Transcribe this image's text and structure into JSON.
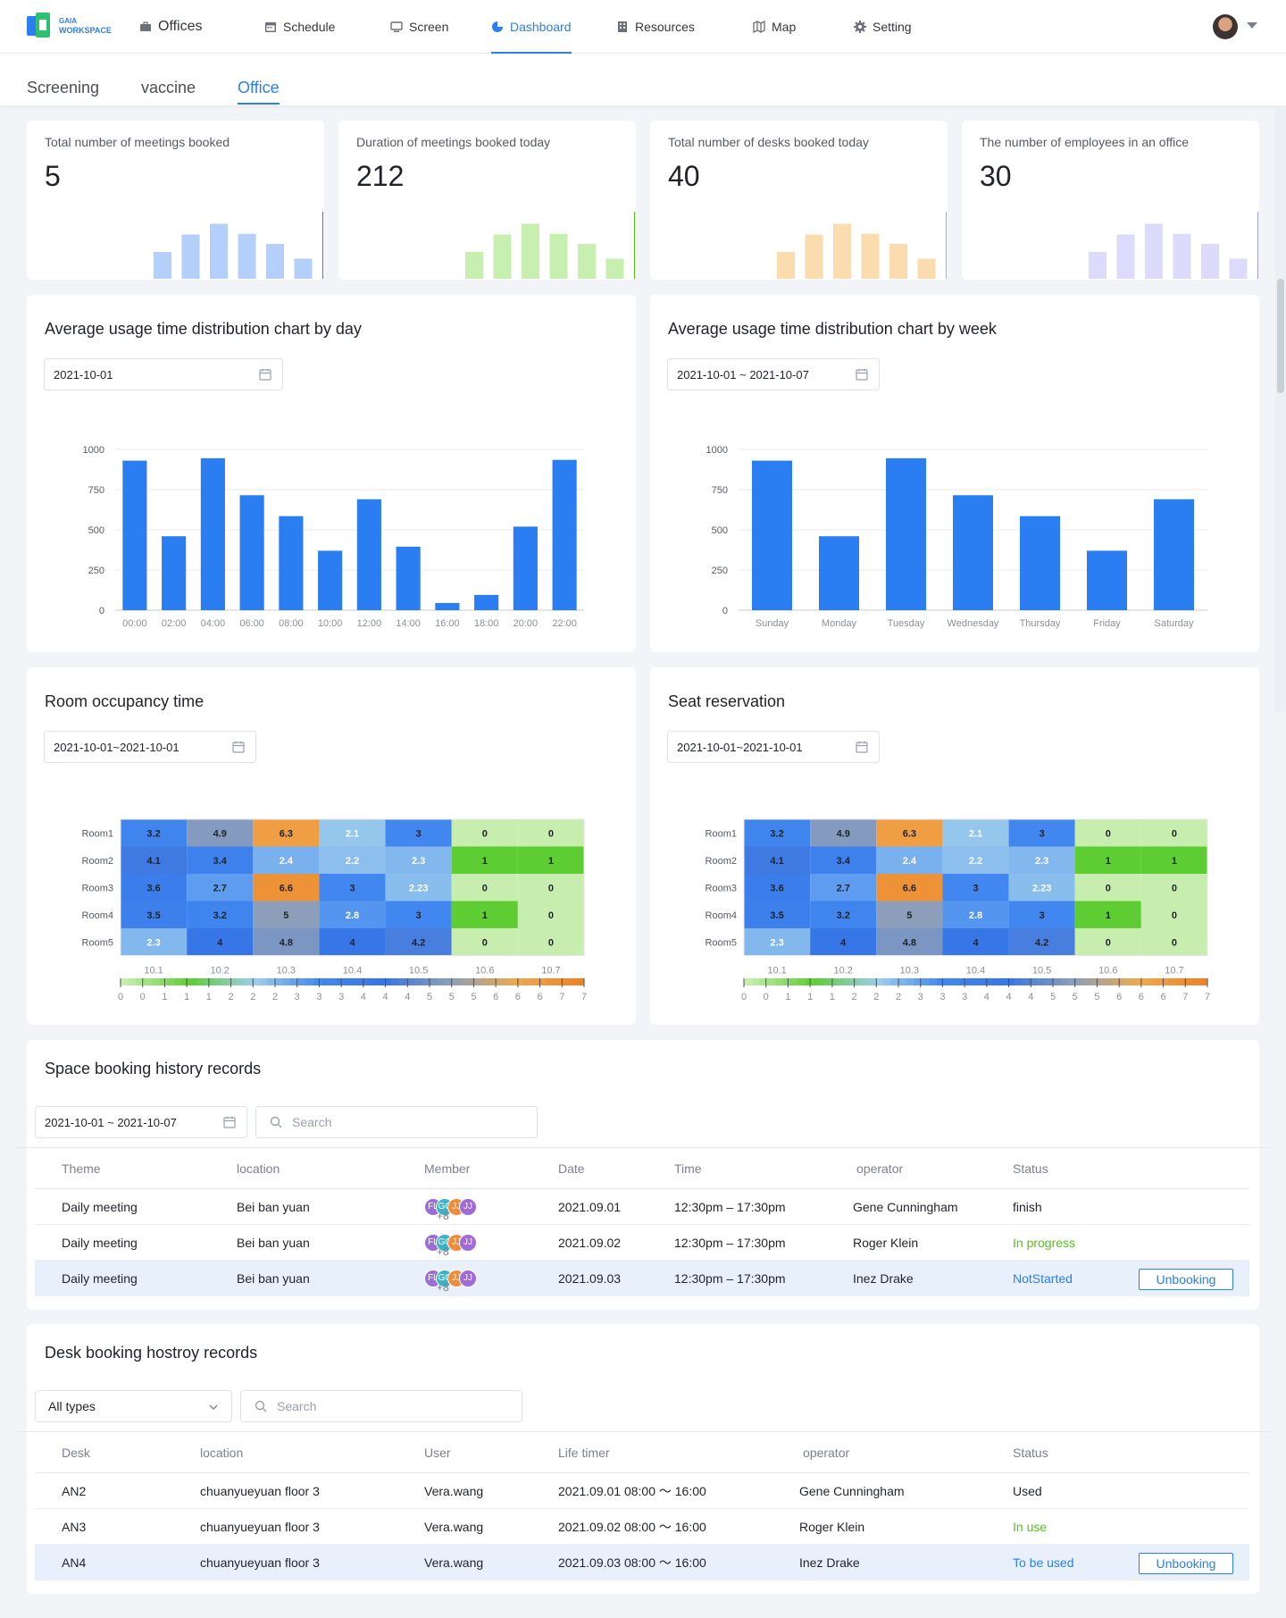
{
  "brand": {
    "line1": "GAIA",
    "line2": "WORKSPACE"
  },
  "nav": [
    {
      "label": "Offices",
      "icon": "briefcase-icon"
    },
    {
      "label": "Schedule",
      "icon": "calendar-icon"
    },
    {
      "label": "Screen",
      "icon": "monitor-icon"
    },
    {
      "label": "Dashboard",
      "icon": "pie-chart-icon"
    },
    {
      "label": "Resources",
      "icon": "building-icon"
    },
    {
      "label": "Map",
      "icon": "map-icon"
    },
    {
      "label": "Setting",
      "icon": "gear-icon"
    }
  ],
  "subtabs": [
    "Screening",
    "vaccine",
    "Office"
  ],
  "stats": [
    {
      "title": "Total number of meetings booked",
      "value": "5",
      "color": "#2b7ef2",
      "light": "#b3cffa"
    },
    {
      "title": "Duration of meetings booked today",
      "value": "212",
      "color": "#52c41a",
      "light": "#c6efb0"
    },
    {
      "title": "Total number of desks booked today",
      "value": "40",
      "color": "#f5a623",
      "light": "#fbdcae"
    },
    {
      "title": "The number of employees in an office",
      "value": "30",
      "color": "#9b98f5",
      "light": "#dcdbfc"
    }
  ],
  "day_chart": {
    "title": "Average usage time distribution chart by day",
    "date": "2021-10-01"
  },
  "week_chart": {
    "title": "Average usage time distribution chart by week",
    "date": "2021-10-01 ~ 2021-10-07"
  },
  "room_heat": {
    "title": "Room occupancy time",
    "date": "2021-10-01~2021-10-01"
  },
  "seat_heat": {
    "title": "Seat reservation",
    "date": "2021-10-01~2021-10-01"
  },
  "chart_data": [
    {
      "type": "bar",
      "categories": [
        "00:00",
        "02:00",
        "04:00",
        "06:00",
        "08:00",
        "10:00",
        "12:00",
        "14:00",
        "16:00",
        "18:00",
        "20:00",
        "22:00"
      ],
      "values": [
        930,
        460,
        945,
        715,
        585,
        370,
        690,
        395,
        45,
        95,
        520,
        935
      ],
      "ylim": [
        0,
        1000
      ],
      "yticks": [
        "0",
        "250",
        "500",
        "750",
        "1000"
      ],
      "grid": true,
      "color": "#2b7ef2"
    },
    {
      "type": "bar",
      "categories": [
        "Sunday",
        "Monday",
        "Tuesday",
        "Wednesday",
        "Thursday",
        "Friday",
        "Saturday"
      ],
      "values": [
        930,
        460,
        945,
        715,
        585,
        370,
        690
      ],
      "ylim": [
        0,
        1000
      ],
      "yticks": [
        "0",
        "250",
        "500",
        "750",
        "1000"
      ],
      "grid": true,
      "color": "#2b7ef2"
    },
    {
      "type": "heatmap",
      "rows": [
        "Room1",
        "Room2",
        "Room3",
        "Room4",
        "Room5"
      ],
      "columns": [
        "10.1",
        "10.2",
        "10.3",
        "10.4",
        "10.5",
        "10.6",
        "10.7"
      ],
      "values": [
        [
          "3.2",
          "4.9",
          "6.3",
          "2.1",
          "3",
          "0",
          "0"
        ],
        [
          "4.1",
          "3.4",
          "2.4",
          "2.2",
          "2.3",
          "1",
          "1"
        ],
        [
          "3.6",
          "2.7",
          "6.6",
          "3",
          "2.23",
          "0",
          "0"
        ],
        [
          "3.5",
          "3.2",
          "5",
          "2.8",
          "3",
          "1",
          "0"
        ],
        [
          "2.3",
          "4",
          "4.8",
          "4",
          "4.2",
          "0",
          "0"
        ]
      ],
      "scale_labels": [
        "0",
        "0",
        "1",
        "1",
        "1",
        "2",
        "2",
        "2",
        "3",
        "3",
        "3",
        "4",
        "4",
        "4",
        "5",
        "5",
        "5",
        "6",
        "6",
        "6",
        "7",
        "7"
      ]
    },
    {
      "type": "heatmap",
      "rows": [
        "Room1",
        "Room2",
        "Room3",
        "Room4",
        "Room5"
      ],
      "columns": [
        "10.1",
        "10.2",
        "10.3",
        "10.4",
        "10.5",
        "10.6",
        "10.7"
      ],
      "values": [
        [
          "3.2",
          "4.9",
          "6.3",
          "2.1",
          "3",
          "0",
          "0"
        ],
        [
          "4.1",
          "3.4",
          "2.4",
          "2.2",
          "2.3",
          "1",
          "1"
        ],
        [
          "3.6",
          "2.7",
          "6.6",
          "3",
          "2.23",
          "0",
          "0"
        ],
        [
          "3.5",
          "3.2",
          "5",
          "2.8",
          "3",
          "1",
          "0"
        ],
        [
          "2.3",
          "4",
          "4.8",
          "4",
          "4.2",
          "0",
          "0"
        ]
      ],
      "scale_labels": [
        "0",
        "0",
        "1",
        "1",
        "1",
        "2",
        "2",
        "2",
        "3",
        "3",
        "3",
        "4",
        "4",
        "4",
        "5",
        "5",
        "5",
        "6",
        "6",
        "6",
        "7",
        "7"
      ]
    }
  ],
  "space": {
    "title": "Space booking history records",
    "date": "2021-10-01 ~ 2021-10-07",
    "search_placeholder": "Search",
    "columns": [
      "Theme",
      "location",
      "Member",
      "Date",
      "Time",
      "operator",
      "Status"
    ],
    "rows": [
      {
        "theme": "Daily meeting",
        "location": "Bei ban yuan",
        "members": [
          "FL",
          "GC",
          "JJ",
          "JJ"
        ],
        "more": "+8",
        "date": "2021.09.01",
        "time": "12:30pm – 17:30pm",
        "operator": "Gene Cunningham",
        "status": "finish"
      },
      {
        "theme": "Daily meeting",
        "location": "Bei ban yuan",
        "members": [
          "FL",
          "GC",
          "JJ",
          "JJ"
        ],
        "more": "+8",
        "date": "2021.09.02",
        "time": "12:30pm – 17:30pm",
        "operator": "Roger Klein",
        "status": "In progress"
      },
      {
        "theme": "Daily meeting",
        "location": "Bei ban yuan",
        "members": [
          "FL",
          "GC",
          "JJ",
          "JJ"
        ],
        "more": "+8",
        "date": "2021.09.03",
        "time": "12:30pm – 17:30pm",
        "operator": "Inez Drake",
        "status": "NotStarted",
        "action": "Unbooking"
      }
    ]
  },
  "desk": {
    "title": "Desk booking hostroy records",
    "type_select": "All types",
    "search_placeholder": "Search",
    "columns": [
      "Desk",
      "location",
      "User",
      "Life timer",
      "operator",
      "Status"
    ],
    "rows": [
      {
        "desk": "AN2",
        "location": "chuanyueyuan floor 3",
        "user": "Vera.wang",
        "life": "2021.09.01 08:00 ～ 16:00",
        "operator": "Gene Cunningham",
        "status": "Used"
      },
      {
        "desk": "AN3",
        "location": "chuanyueyuan floor 3",
        "user": "Vera.wang",
        "life": "2021.09.02 08:00 ～ 16:00",
        "operator": "Roger Klein",
        "status": "In use"
      },
      {
        "desk": "AN4",
        "location": "chuanyueyuan floor 3",
        "user": "Vera.wang",
        "life": "2021.09.03 08:00 ～ 16:00",
        "operator": "Inez Drake",
        "status": "To be used",
        "action": "Unbooking"
      }
    ]
  }
}
